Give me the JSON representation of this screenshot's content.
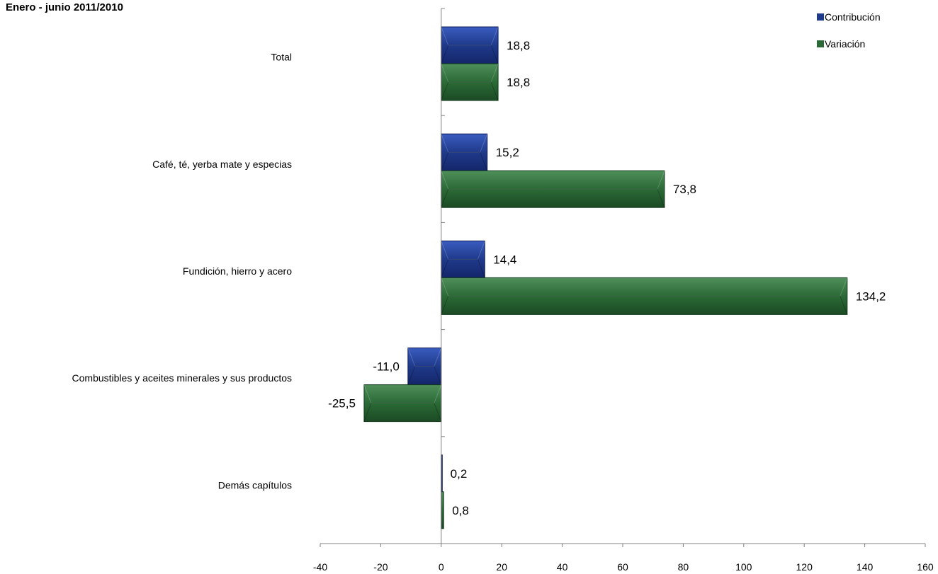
{
  "title": "Enero - junio 2011/2010",
  "chart_data": {
    "type": "bar",
    "orientation": "horizontal",
    "categories": [
      "Total",
      "Café, té, yerba mate y especias",
      "Fundición, hierro y acero",
      "Combustibles y aceites minerales y sus productos",
      "Demás capítulos"
    ],
    "series": [
      {
        "name": "Contribución",
        "color": "#1f3a8a",
        "values": [
          18.8,
          15.2,
          14.4,
          -11.0,
          0.2
        ],
        "labels": [
          "18,8",
          "15,2",
          "14,4",
          "-11,0",
          "0,2"
        ]
      },
      {
        "name": "Variación",
        "color": "#2b6a36",
        "values": [
          18.8,
          73.8,
          134.2,
          -25.5,
          0.8
        ],
        "labels": [
          "18,8",
          "73,8",
          "134,2",
          "-25,5",
          "0,8"
        ]
      }
    ],
    "xlim": [
      -40,
      160
    ],
    "xticks": [
      -40,
      -20,
      0,
      20,
      40,
      60,
      80,
      100,
      120,
      140,
      160
    ],
    "legend_position": "top-right",
    "grid": false
  }
}
